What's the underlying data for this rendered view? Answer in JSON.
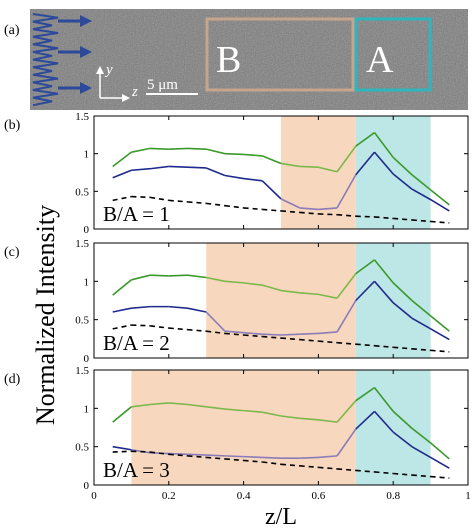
{
  "panel_a": {
    "label": "(a)",
    "box_b_label": "B",
    "box_a_label": "A",
    "axis_y": "y",
    "axis_z": "z",
    "scale_label": "5 μm",
    "colors": {
      "box_b": "#c7a48c",
      "box_a": "#2fb5bd",
      "arrows": "#2d4a9a",
      "field": "#7b7b7b"
    }
  },
  "shared": {
    "ylabel": "Normalized Intensity",
    "xlabel": "z/L",
    "x_ticks": [
      "0",
      "0.2",
      "0.4",
      "0.6",
      "0.8",
      "1"
    ],
    "y_ticks": [
      "0",
      "0.5",
      "1",
      "1.5"
    ],
    "colors": {
      "green": "#3a9a2a",
      "blue": "#1e2a8c",
      "purple": "#8b7bb8",
      "light_green": "#7cb84a",
      "dashed": "#000000",
      "region_b": "#f8d7bf",
      "region_a": "#bde6e6"
    }
  },
  "chart_data": [
    {
      "type": "line",
      "panel_label": "(b)",
      "annotation": "B/A = 1",
      "xlim": [
        0,
        1
      ],
      "ylim": [
        0,
        1.5
      ],
      "regions": [
        {
          "name": "B",
          "x": [
            0.5,
            0.7
          ]
        },
        {
          "name": "A",
          "x": [
            0.7,
            0.9
          ]
        }
      ],
      "x": [
        0.05,
        0.1,
        0.15,
        0.2,
        0.25,
        0.3,
        0.35,
        0.4,
        0.45,
        0.5,
        0.55,
        0.6,
        0.65,
        0.7,
        0.75,
        0.8,
        0.85,
        0.9,
        0.95
      ],
      "series": [
        {
          "values": [
            0.83,
            1.02,
            1.07,
            1.06,
            1.07,
            1.06,
            1.0,
            0.99,
            0.97,
            0.87,
            0.83,
            0.82,
            0.76,
            1.1,
            1.28,
            0.95,
            0.72,
            0.52,
            0.32
          ]
        },
        {
          "values": [
            0.68,
            0.78,
            0.8,
            0.83,
            0.82,
            0.81,
            0.71,
            0.67,
            0.64,
            0.4,
            0.28,
            0.26,
            0.28,
            0.72,
            1.02,
            0.73,
            0.53,
            0.39,
            0.24
          ]
        },
        {
          "values": [
            0.38,
            0.43,
            0.42,
            0.38,
            0.36,
            0.34,
            0.31,
            0.28,
            0.26,
            0.24,
            0.22,
            0.2,
            0.19,
            0.17,
            0.16,
            0.14,
            0.12,
            0.1,
            0.08
          ]
        }
      ]
    },
    {
      "type": "line",
      "panel_label": "(c)",
      "annotation": "B/A = 2",
      "xlim": [
        0,
        1
      ],
      "ylim": [
        0,
        1.5
      ],
      "regions": [
        {
          "name": "B",
          "x": [
            0.3,
            0.7
          ]
        },
        {
          "name": "A",
          "x": [
            0.7,
            0.9
          ]
        }
      ],
      "x": [
        0.05,
        0.1,
        0.15,
        0.2,
        0.25,
        0.3,
        0.35,
        0.4,
        0.45,
        0.5,
        0.55,
        0.6,
        0.65,
        0.7,
        0.75,
        0.8,
        0.85,
        0.9,
        0.95
      ],
      "series": [
        {
          "values": [
            0.82,
            1.02,
            1.08,
            1.07,
            1.08,
            1.05,
            1.0,
            0.98,
            0.95,
            0.88,
            0.85,
            0.83,
            0.78,
            1.1,
            1.28,
            0.98,
            0.75,
            0.55,
            0.35
          ]
        },
        {
          "values": [
            0.6,
            0.65,
            0.67,
            0.67,
            0.65,
            0.6,
            0.35,
            0.33,
            0.31,
            0.3,
            0.31,
            0.32,
            0.34,
            0.75,
            1.0,
            0.72,
            0.52,
            0.38,
            0.24
          ]
        },
        {
          "values": [
            0.38,
            0.43,
            0.42,
            0.39,
            0.37,
            0.35,
            0.32,
            0.3,
            0.28,
            0.26,
            0.24,
            0.22,
            0.2,
            0.18,
            0.16,
            0.14,
            0.12,
            0.1,
            0.08
          ]
        }
      ]
    },
    {
      "type": "line",
      "panel_label": "(d)",
      "annotation": "B/A = 3",
      "xlim": [
        0,
        1
      ],
      "ylim": [
        0,
        1.5
      ],
      "regions": [
        {
          "name": "B",
          "x": [
            0.1,
            0.7
          ]
        },
        {
          "name": "A",
          "x": [
            0.7,
            0.9
          ]
        }
      ],
      "x": [
        0.05,
        0.1,
        0.15,
        0.2,
        0.25,
        0.3,
        0.35,
        0.4,
        0.45,
        0.5,
        0.55,
        0.6,
        0.65,
        0.7,
        0.75,
        0.8,
        0.85,
        0.9,
        0.95
      ],
      "series": [
        {
          "values": [
            0.82,
            1.02,
            1.05,
            1.07,
            1.05,
            1.02,
            0.99,
            0.97,
            0.95,
            0.9,
            0.87,
            0.85,
            0.82,
            1.1,
            1.27,
            0.96,
            0.74,
            0.55,
            0.34
          ]
        },
        {
          "values": [
            0.5,
            0.46,
            0.42,
            0.41,
            0.4,
            0.39,
            0.38,
            0.37,
            0.36,
            0.35,
            0.35,
            0.36,
            0.38,
            0.73,
            0.96,
            0.69,
            0.5,
            0.36,
            0.22
          ]
        },
        {
          "values": [
            0.43,
            0.44,
            0.43,
            0.4,
            0.38,
            0.36,
            0.34,
            0.32,
            0.3,
            0.27,
            0.25,
            0.23,
            0.21,
            0.19,
            0.17,
            0.15,
            0.13,
            0.11,
            0.09
          ]
        }
      ]
    }
  ]
}
